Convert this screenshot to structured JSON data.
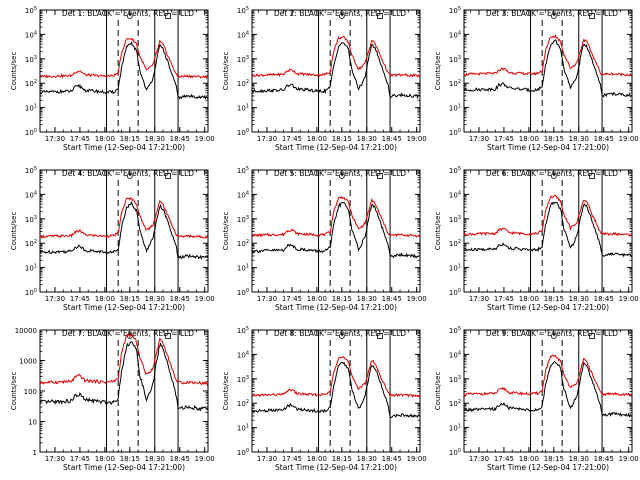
{
  "chart_data": {
    "type": "line",
    "ylabel": "Counts/sec",
    "xlabel": "Start Time (12-Sep-04 17:21:00)",
    "x_ticks": [
      "17:30",
      "17:45",
      "18:00",
      "18:15",
      "18:30",
      "18:45",
      "19:00"
    ],
    "x_range": [
      "17:21",
      "19:02"
    ],
    "y_scale": "log",
    "series_names": [
      "Events",
      "LLD"
    ],
    "colors": {
      "events": "#000000",
      "lld": "#dd0000",
      "axes": "#000000"
    },
    "panels": [
      {
        "title": "Det 1: BLACK = Events, RED = LLD",
        "ylim": [
          1,
          100000
        ],
        "yticks": [
          "10^0",
          "10^1",
          "10^2",
          "10^3",
          "10^4",
          "10^5"
        ],
        "solid_markers": [
          "18:01",
          "18:30",
          "18:44"
        ],
        "dashed_markers": [
          "18:08",
          "18:20"
        ]
      },
      {
        "title": "Det 2: BLACK = Events, RED = LLD",
        "ylim": [
          1,
          100000
        ],
        "yticks": [
          "10^0",
          "10^1",
          "10^2",
          "10^3",
          "10^4",
          "10^5"
        ],
        "solid_markers": [
          "18:01",
          "18:30",
          "18:44"
        ],
        "dashed_markers": [
          "18:08",
          "18:20"
        ]
      },
      {
        "title": "Det 3: BLACK = Events, RED = LLD",
        "ylim": [
          1,
          100000
        ],
        "yticks": [
          "10^0",
          "10^1",
          "10^2",
          "10^3",
          "10^4",
          "10^5"
        ],
        "solid_markers": [
          "18:01",
          "18:30",
          "18:44"
        ],
        "dashed_markers": [
          "18:08",
          "18:20"
        ]
      },
      {
        "title": "Det 4: BLACK = Events, RED = LLD",
        "ylim": [
          1,
          100000
        ],
        "yticks": [
          "10^0",
          "10^1",
          "10^2",
          "10^3",
          "10^4",
          "10^5"
        ],
        "solid_markers": [
          "18:01",
          "18:30",
          "18:44"
        ],
        "dashed_markers": [
          "18:08",
          "18:20"
        ]
      },
      {
        "title": "Det 5: BLACK = Events, RED = LLD",
        "ylim": [
          1,
          100000
        ],
        "yticks": [
          "10^0",
          "10^1",
          "10^2",
          "10^3",
          "10^4",
          "10^5"
        ],
        "solid_markers": [
          "18:01",
          "18:30",
          "18:44"
        ],
        "dashed_markers": [
          "18:08",
          "18:20"
        ]
      },
      {
        "title": "Det 6: BLACK = Events, RED = LLD",
        "ylim": [
          1,
          100000
        ],
        "yticks": [
          "10^0",
          "10^1",
          "10^2",
          "10^3",
          "10^4",
          "10^5"
        ],
        "solid_markers": [
          "18:01",
          "18:30",
          "18:44"
        ],
        "dashed_markers": [
          "18:08",
          "18:20"
        ]
      },
      {
        "title": "Det 7: BLACK = Events, RED = LLD",
        "ylim": [
          1,
          10000
        ],
        "yticks": [
          "1",
          "10",
          "100",
          "1000",
          "10000"
        ],
        "solid_markers": [
          "18:01",
          "18:30",
          "18:44"
        ],
        "dashed_markers": [
          "18:08",
          "18:20"
        ]
      },
      {
        "title": "Det 8: BLACK = Events, RED = LLD",
        "ylim": [
          1,
          100000
        ],
        "yticks": [
          "10^0",
          "10^1",
          "10^2",
          "10^3",
          "10^4",
          "10^5"
        ],
        "solid_markers": [
          "18:01",
          "18:30",
          "18:44"
        ],
        "dashed_markers": [
          "18:08",
          "18:20"
        ]
      },
      {
        "title": "Det 9: BLACK = Events, RED = LLD",
        "ylim": [
          1,
          100000
        ],
        "yticks": [
          "10^0",
          "10^1",
          "10^2",
          "10^3",
          "10^4",
          "10^5"
        ],
        "solid_markers": [
          "18:01",
          "18:30",
          "18:44"
        ],
        "dashed_markers": [
          "18:08",
          "18:20"
        ]
      }
    ],
    "events_profile": {
      "x": [
        "17:21",
        "17:40",
        "17:42",
        "17:45",
        "17:48",
        "17:55",
        "18:00",
        "18:05",
        "18:08",
        "18:10",
        "18:13",
        "18:16",
        "18:19",
        "18:21",
        "18:25",
        "18:27",
        "18:29",
        "18:31",
        "18:33",
        "18:35",
        "18:38",
        "18:43",
        "18:44",
        "18:50",
        "19:02"
      ],
      "y": [
        50,
        55,
        80,
        90,
        60,
        55,
        50,
        50,
        70,
        500,
        3500,
        5000,
        2500,
        400,
        60,
        100,
        200,
        1000,
        4000,
        3000,
        800,
        80,
        30,
        35,
        30
      ]
    },
    "lld_profile": {
      "x": [
        "17:21",
        "17:40",
        "17:42",
        "17:45",
        "17:48",
        "17:55",
        "18:00",
        "18:05",
        "18:08",
        "18:10",
        "18:13",
        "18:16",
        "18:19",
        "18:21",
        "18:25",
        "18:27",
        "18:29",
        "18:31",
        "18:33",
        "18:35",
        "18:38",
        "18:43",
        "18:44",
        "18:50",
        "19:02"
      ],
      "y": [
        220,
        240,
        330,
        380,
        260,
        240,
        230,
        240,
        300,
        2000,
        7500,
        8000,
        5000,
        1500,
        400,
        500,
        700,
        2000,
        6000,
        4500,
        1500,
        260,
        220,
        230,
        210
      ]
    }
  }
}
